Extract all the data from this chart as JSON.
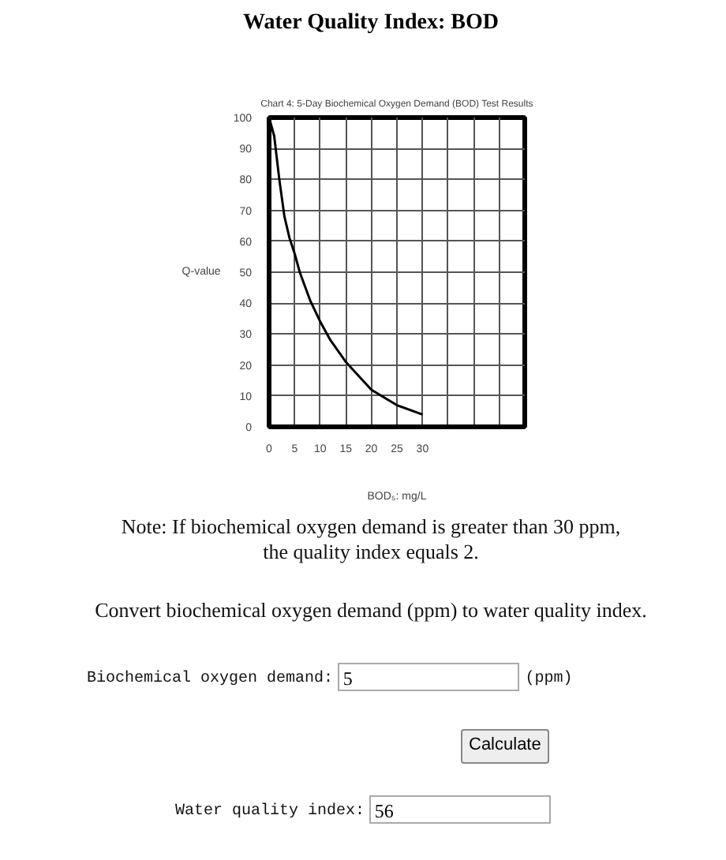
{
  "chart_data": {
    "type": "line",
    "title": "Water Quality Index: BOD",
    "subtitle": "Chart 4: 5-Day Biochemical Oxygen Demand (BOD) Test Results",
    "xlabel": "BOD₅: mg/L",
    "ylabel": "Q-value",
    "x": [
      0,
      1,
      2,
      3,
      4,
      5,
      6,
      8,
      10,
      12,
      15,
      20,
      25,
      30
    ],
    "series": [
      {
        "color": "#000000",
        "values": [
          100,
          94,
          80,
          68,
          61,
          56,
          50,
          41,
          34,
          28,
          21,
          12,
          7,
          4
        ]
      }
    ],
    "xlim": [
      0,
      50
    ],
    "xticks": [
      0,
      5,
      10,
      15,
      20,
      25,
      30,
      {
        "value": 35,
        "label": null
      },
      {
        "value": 40,
        "label": null
      },
      {
        "value": 45,
        "label": null
      }
    ],
    "ylim": [
      0,
      100
    ],
    "yticks": [
      0,
      10,
      20,
      30,
      40,
      50,
      60,
      70,
      80,
      90,
      100
    ],
    "grid": true,
    "marker": "none",
    "line_style": "solid",
    "annotations": [
      "Note: If biochemical oxygen demand is greater than 30 ppm, the quality index equals 2.",
      "Convert biochemical oxygen demand (ppm) to water quality index.",
      "Biochemical oxygen demand:",
      "5",
      "(ppm)",
      "Calculate",
      "Water quality index:",
      "56"
    ]
  }
}
